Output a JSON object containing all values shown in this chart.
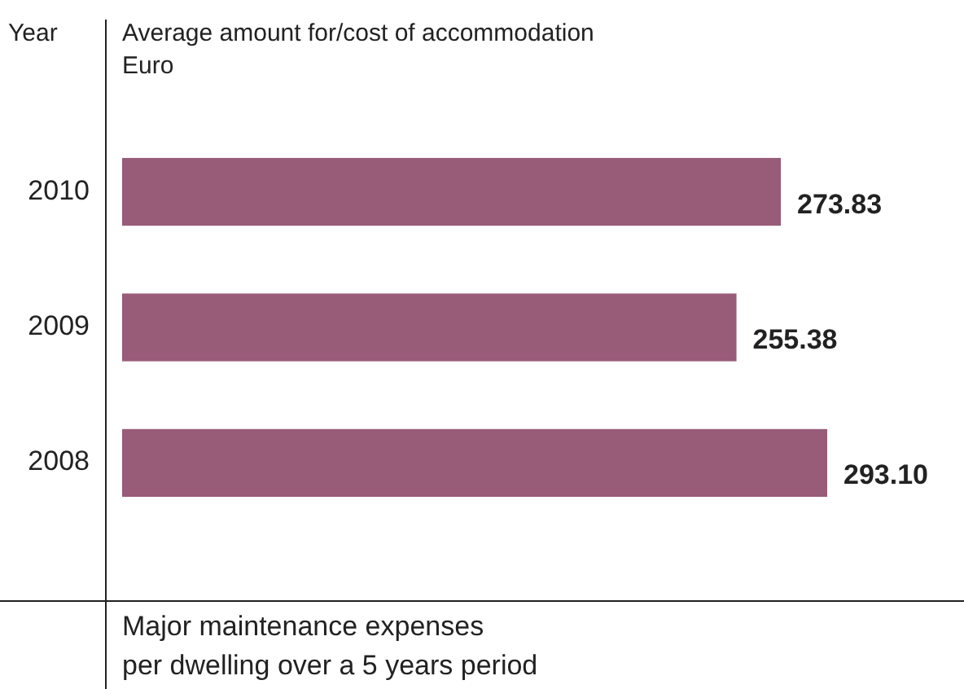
{
  "chart_data": {
    "type": "bar",
    "orientation": "horizontal",
    "title": "Average amount for/cost of accommodation",
    "subtitle": "Euro",
    "ylabel": "Year",
    "xlabel": "Major maintenance expenses per dwelling over a 5 years period",
    "categories": [
      "2010",
      "2009",
      "2008"
    ],
    "values": [
      273.83,
      255.38,
      293.1
    ],
    "value_labels": [
      "273.83",
      "255.38",
      "293.10"
    ],
    "color": "#985b78"
  }
}
